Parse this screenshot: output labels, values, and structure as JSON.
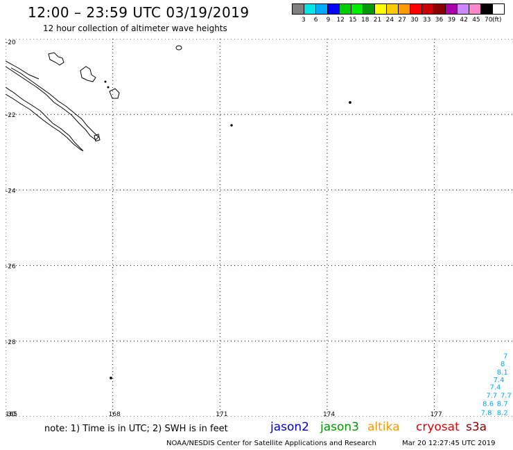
{
  "header": {
    "title": "12:00 – 23:59 UTC 03/19/2019",
    "subtitle": "12 hour collection of altimeter wave heights"
  },
  "legend": {
    "unit": "(ft)",
    "colors": [
      "#808080",
      "#00e5e5",
      "#00aaff",
      "#0000ff",
      "#00cc00",
      "#00ee00",
      "#009900",
      "#ffff00",
      "#ffcc00",
      "#ff9900",
      "#ff0000",
      "#cc0000",
      "#880000",
      "#aa00aa",
      "#cc88ff",
      "#ff88cc",
      "#000000"
    ],
    "labels": [
      "3",
      "6",
      "9",
      "12",
      "15",
      "18",
      "21",
      "24",
      "27",
      "30",
      "33",
      "36",
      "39",
      "42",
      "45",
      "70"
    ]
  },
  "map": {
    "lat_labels": [
      "-20",
      "-22",
      "-24",
      "-26",
      "-28",
      "-30"
    ],
    "lon_labels": [
      "165",
      "168",
      "171",
      "174",
      "177"
    ],
    "lat_range": [
      -30,
      -20
    ],
    "lon_range": [
      165,
      179.2
    ],
    "observations": [
      {
        "text": "7.8",
        "lat": -29.95,
        "lon": 178.3,
        "color": "#00aaee"
      },
      {
        "text": "8.2",
        "lat": -29.95,
        "lon": 178.75,
        "color": "#00aaee"
      },
      {
        "text": "8.6",
        "lat": -29.72,
        "lon": 178.35,
        "color": "#00aaee"
      },
      {
        "text": "8.7",
        "lat": -29.72,
        "lon": 178.75,
        "color": "#00aaee"
      },
      {
        "text": "7.7",
        "lat": -29.5,
        "lon": 178.45,
        "color": "#00aaee"
      },
      {
        "text": "7.7",
        "lat": -29.5,
        "lon": 178.85,
        "color": "#00aaee"
      },
      {
        "text": "7.4",
        "lat": -29.28,
        "lon": 178.55,
        "color": "#00aaee"
      },
      {
        "text": "7.4",
        "lat": -29.08,
        "lon": 178.65,
        "color": "#00aaee"
      },
      {
        "text": "8.1",
        "lat": -28.88,
        "lon": 178.75,
        "color": "#00aaee"
      },
      {
        "text": "8",
        "lat": -28.66,
        "lon": 178.85,
        "color": "#00aaee"
      },
      {
        "text": "7",
        "lat": -28.45,
        "lon": 178.95,
        "color": "#00aaee"
      }
    ]
  },
  "footer": {
    "note": "note: 1) Time is in UTC; 2) SWH is in feet",
    "satellites": [
      {
        "name": "jason2",
        "color": "#0000cc"
      },
      {
        "name": "jason3",
        "color": "#009900"
      },
      {
        "name": "altika",
        "color": "#ff9900"
      },
      {
        "name": "cryosat",
        "color": "#dd0000"
      },
      {
        "name": "s3a",
        "color": "#880000"
      }
    ],
    "credit": "NOAA/NESDIS Center for Satellite Applications and Research",
    "timestamp": "Mar 20 12:27:45 UTC 2019"
  }
}
